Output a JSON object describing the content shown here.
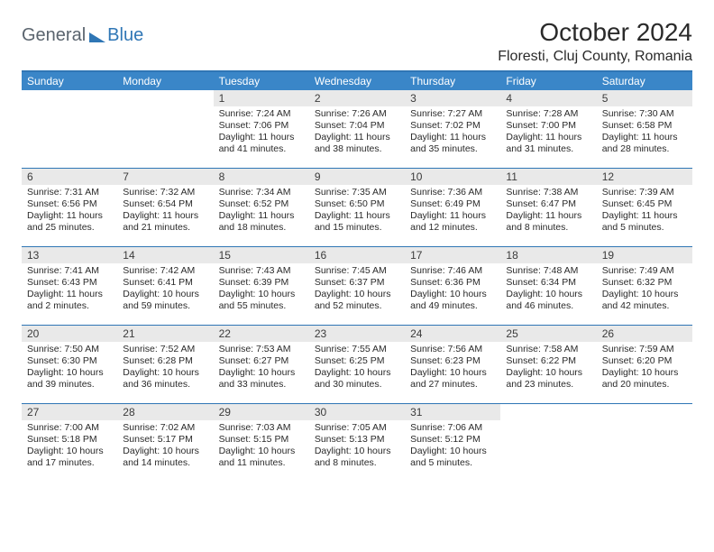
{
  "brand": {
    "general": "General",
    "blue": "Blue"
  },
  "title": "October 2024",
  "location": "Floresti, Cluj County, Romania",
  "weekdays": [
    "Sunday",
    "Monday",
    "Tuesday",
    "Wednesday",
    "Thursday",
    "Friday",
    "Saturday"
  ],
  "colors": {
    "header_bg": "#3a86c8",
    "rule": "#2f76b5",
    "daynum_bg": "#e9e9e9",
    "text": "#2a2a2a"
  },
  "layout": {
    "first_weekday_index": 2,
    "days_in_month": 31
  },
  "days": {
    "1": {
      "sunrise": "7:24 AM",
      "sunset": "7:06 PM",
      "daylight": "11 hours and 41 minutes."
    },
    "2": {
      "sunrise": "7:26 AM",
      "sunset": "7:04 PM",
      "daylight": "11 hours and 38 minutes."
    },
    "3": {
      "sunrise": "7:27 AM",
      "sunset": "7:02 PM",
      "daylight": "11 hours and 35 minutes."
    },
    "4": {
      "sunrise": "7:28 AM",
      "sunset": "7:00 PM",
      "daylight": "11 hours and 31 minutes."
    },
    "5": {
      "sunrise": "7:30 AM",
      "sunset": "6:58 PM",
      "daylight": "11 hours and 28 minutes."
    },
    "6": {
      "sunrise": "7:31 AM",
      "sunset": "6:56 PM",
      "daylight": "11 hours and 25 minutes."
    },
    "7": {
      "sunrise": "7:32 AM",
      "sunset": "6:54 PM",
      "daylight": "11 hours and 21 minutes."
    },
    "8": {
      "sunrise": "7:34 AM",
      "sunset": "6:52 PM",
      "daylight": "11 hours and 18 minutes."
    },
    "9": {
      "sunrise": "7:35 AM",
      "sunset": "6:50 PM",
      "daylight": "11 hours and 15 minutes."
    },
    "10": {
      "sunrise": "7:36 AM",
      "sunset": "6:49 PM",
      "daylight": "11 hours and 12 minutes."
    },
    "11": {
      "sunrise": "7:38 AM",
      "sunset": "6:47 PM",
      "daylight": "11 hours and 8 minutes."
    },
    "12": {
      "sunrise": "7:39 AM",
      "sunset": "6:45 PM",
      "daylight": "11 hours and 5 minutes."
    },
    "13": {
      "sunrise": "7:41 AM",
      "sunset": "6:43 PM",
      "daylight": "11 hours and 2 minutes."
    },
    "14": {
      "sunrise": "7:42 AM",
      "sunset": "6:41 PM",
      "daylight": "10 hours and 59 minutes."
    },
    "15": {
      "sunrise": "7:43 AM",
      "sunset": "6:39 PM",
      "daylight": "10 hours and 55 minutes."
    },
    "16": {
      "sunrise": "7:45 AM",
      "sunset": "6:37 PM",
      "daylight": "10 hours and 52 minutes."
    },
    "17": {
      "sunrise": "7:46 AM",
      "sunset": "6:36 PM",
      "daylight": "10 hours and 49 minutes."
    },
    "18": {
      "sunrise": "7:48 AM",
      "sunset": "6:34 PM",
      "daylight": "10 hours and 46 minutes."
    },
    "19": {
      "sunrise": "7:49 AM",
      "sunset": "6:32 PM",
      "daylight": "10 hours and 42 minutes."
    },
    "20": {
      "sunrise": "7:50 AM",
      "sunset": "6:30 PM",
      "daylight": "10 hours and 39 minutes."
    },
    "21": {
      "sunrise": "7:52 AM",
      "sunset": "6:28 PM",
      "daylight": "10 hours and 36 minutes."
    },
    "22": {
      "sunrise": "7:53 AM",
      "sunset": "6:27 PM",
      "daylight": "10 hours and 33 minutes."
    },
    "23": {
      "sunrise": "7:55 AM",
      "sunset": "6:25 PM",
      "daylight": "10 hours and 30 minutes."
    },
    "24": {
      "sunrise": "7:56 AM",
      "sunset": "6:23 PM",
      "daylight": "10 hours and 27 minutes."
    },
    "25": {
      "sunrise": "7:58 AM",
      "sunset": "6:22 PM",
      "daylight": "10 hours and 23 minutes."
    },
    "26": {
      "sunrise": "7:59 AM",
      "sunset": "6:20 PM",
      "daylight": "10 hours and 20 minutes."
    },
    "27": {
      "sunrise": "7:00 AM",
      "sunset": "5:18 PM",
      "daylight": "10 hours and 17 minutes."
    },
    "28": {
      "sunrise": "7:02 AM",
      "sunset": "5:17 PM",
      "daylight": "10 hours and 14 minutes."
    },
    "29": {
      "sunrise": "7:03 AM",
      "sunset": "5:15 PM",
      "daylight": "10 hours and 11 minutes."
    },
    "30": {
      "sunrise": "7:05 AM",
      "sunset": "5:13 PM",
      "daylight": "10 hours and 8 minutes."
    },
    "31": {
      "sunrise": "7:06 AM",
      "sunset": "5:12 PM",
      "daylight": "10 hours and 5 minutes."
    }
  }
}
